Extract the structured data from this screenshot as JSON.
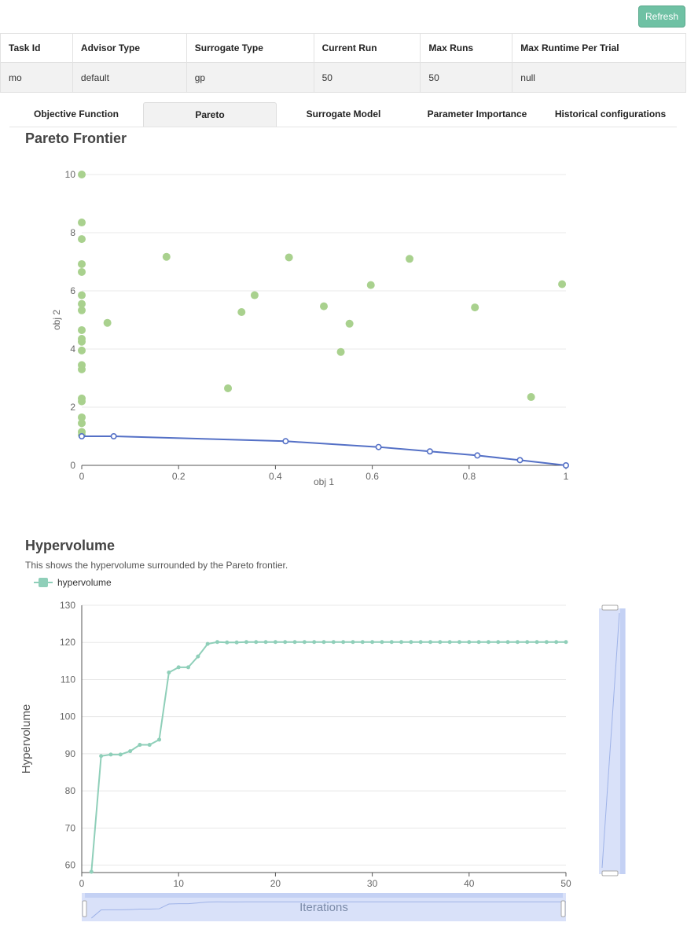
{
  "refresh_label": "Refresh",
  "table": {
    "headers": [
      "Task Id",
      "Advisor Type",
      "Surrogate Type",
      "Current Run",
      "Max Runs",
      "Max Runtime Per Trial"
    ],
    "row": [
      "mo",
      "default",
      "gp",
      "50",
      "50",
      "null"
    ]
  },
  "tabs": [
    {
      "label": "Objective Function",
      "active": false
    },
    {
      "label": "Pareto",
      "active": true
    },
    {
      "label": "Surrogate Model",
      "active": false
    },
    {
      "label": "Parameter Importance",
      "active": false
    },
    {
      "label": "Historical configurations",
      "active": false
    }
  ],
  "pareto_title": "Pareto Frontier",
  "hv_title": "Hypervolume",
  "hv_description": "This shows the hypervolume surrounded by the Pareto frontier.",
  "colors": {
    "accent": "#6fc1a4",
    "scatter": "#a9d18e",
    "frontier": "#5470c6",
    "hv_line": "#8fcfb9",
    "zoom": "#d2dcf8"
  },
  "chart_data": [
    {
      "type": "scatter",
      "title": "Pareto Frontier",
      "xlabel": "obj 1",
      "ylabel": "obj 2",
      "xlim": [
        0,
        1
      ],
      "ylim": [
        0,
        10
      ],
      "xticks": [
        "0",
        "0.2",
        "0.4",
        "0.6",
        "0.8",
        "1"
      ],
      "yticks": [
        "0",
        "2",
        "4",
        "6",
        "8",
        "10"
      ],
      "grid": true,
      "points": [
        [
          0,
          10.0
        ],
        [
          0,
          8.35
        ],
        [
          0,
          7.78
        ],
        [
          0,
          6.92
        ],
        [
          0,
          6.65
        ],
        [
          0,
          5.85
        ],
        [
          0,
          5.55
        ],
        [
          0,
          5.33
        ],
        [
          0,
          4.65
        ],
        [
          0,
          4.35
        ],
        [
          0,
          4.25
        ],
        [
          0,
          3.95
        ],
        [
          0,
          3.45
        ],
        [
          0,
          3.3
        ],
        [
          0,
          2.3
        ],
        [
          0,
          2.2
        ],
        [
          0,
          1.65
        ],
        [
          0,
          1.45
        ],
        [
          0,
          1.15
        ],
        [
          0,
          1.05
        ],
        [
          0.053,
          4.9
        ],
        [
          0.175,
          7.17
        ],
        [
          0.302,
          2.65
        ],
        [
          0.33,
          5.27
        ],
        [
          0.357,
          5.85
        ],
        [
          0.428,
          7.15
        ],
        [
          0.5,
          5.47
        ],
        [
          0.535,
          3.9
        ],
        [
          0.553,
          4.87
        ],
        [
          0.597,
          6.2
        ],
        [
          0.677,
          7.1
        ],
        [
          0.812,
          5.43
        ],
        [
          0.928,
          2.35
        ],
        [
          0.992,
          6.23
        ]
      ],
      "frontier": [
        [
          0,
          1.0
        ],
        [
          0.066,
          1.0
        ],
        [
          0.421,
          0.83
        ],
        [
          0.613,
          0.63
        ],
        [
          0.719,
          0.48
        ],
        [
          0.817,
          0.34
        ],
        [
          0.905,
          0.18
        ],
        [
          1.0,
          0.0
        ]
      ]
    },
    {
      "type": "line",
      "title": "Hypervolume",
      "xlabel": "Iterations",
      "ylabel": "Hypervolume",
      "xlim": [
        0,
        50
      ],
      "ylim": [
        58,
        130
      ],
      "xticks": [
        "0",
        "10",
        "20",
        "30",
        "40",
        "50"
      ],
      "yticks": [
        "60",
        "70",
        "80",
        "90",
        "100",
        "110",
        "120",
        "130"
      ],
      "grid": true,
      "legend": "top-left",
      "series": [
        {
          "name": "hypervolume",
          "x": [
            1,
            2,
            3,
            4,
            5,
            6,
            7,
            8,
            9,
            10,
            11,
            12,
            13,
            14,
            15,
            16,
            17,
            18,
            19,
            20,
            21,
            22,
            23,
            24,
            25,
            26,
            27,
            28,
            29,
            30,
            31,
            32,
            33,
            34,
            35,
            36,
            37,
            38,
            39,
            40,
            41,
            42,
            43,
            44,
            45,
            46,
            47,
            48,
            49,
            50
          ],
          "values": [
            58.2,
            89.4,
            89.8,
            89.8,
            90.7,
            92.4,
            92.4,
            93.8,
            111.9,
            113.3,
            113.3,
            116.2,
            119.6,
            120.1,
            120.0,
            120.0,
            120.1,
            120.1,
            120.1,
            120.1,
            120.1,
            120.1,
            120.1,
            120.1,
            120.1,
            120.1,
            120.1,
            120.1,
            120.1,
            120.1,
            120.1,
            120.1,
            120.1,
            120.1,
            120.1,
            120.1,
            120.1,
            120.1,
            120.1,
            120.1,
            120.1,
            120.1,
            120.1,
            120.1,
            120.1,
            120.1,
            120.1,
            120.1,
            120.1,
            120.1
          ]
        }
      ]
    }
  ]
}
